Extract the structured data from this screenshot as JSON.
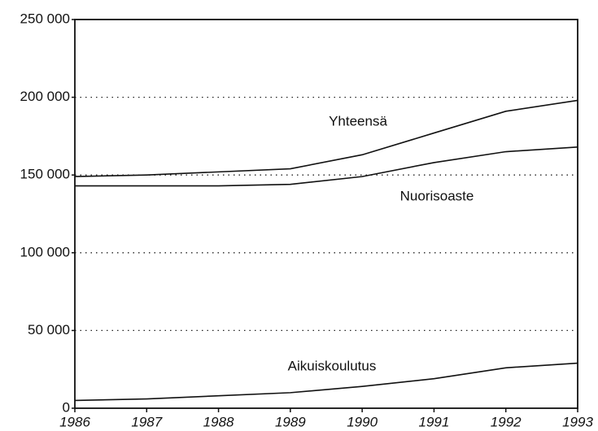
{
  "chart_data": {
    "type": "line",
    "x": [
      1986,
      1987,
      1988,
      1989,
      1990,
      1991,
      1992,
      1993
    ],
    "series": [
      {
        "name": "Yhteensä",
        "color": "#111111",
        "values": [
          149000,
          150000,
          152000,
          154000,
          163000,
          177000,
          191000,
          198000
        ]
      },
      {
        "name": "Nuorisoaste",
        "color": "#111111",
        "values": [
          143000,
          143000,
          143000,
          144000,
          149000,
          158000,
          165000,
          168000
        ]
      },
      {
        "name": "Aikuiskoulutus",
        "color": "#111111",
        "values": [
          5000,
          6000,
          8000,
          10000,
          14000,
          19000,
          26000,
          29000
        ]
      }
    ],
    "xlim": [
      1986,
      1993
    ],
    "xticks": [
      1986,
      1987,
      1988,
      1989,
      1990,
      1991,
      1992,
      1993
    ],
    "ylim": [
      0,
      250000
    ],
    "yticks": [
      0,
      {
        "value": 50000,
        "label": "50 000"
      },
      {
        "value": 100000,
        "label": "100 000"
      },
      {
        "value": 150000,
        "label": "150 000"
      },
      {
        "value": 200000,
        "label": "200 000"
      },
      {
        "value": 250000,
        "label": "250 000"
      }
    ],
    "grid": true
  }
}
